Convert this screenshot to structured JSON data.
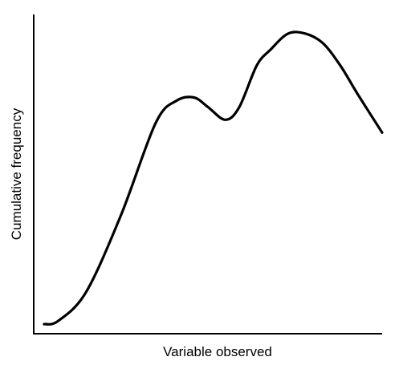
{
  "chart_data": {
    "type": "line",
    "title": "",
    "xlabel": "Variable observed",
    "ylabel": "Cumulative frequency",
    "xlim": [
      0,
      100
    ],
    "ylim": [
      0,
      100
    ],
    "ticks": false,
    "grid": false,
    "legend": "none",
    "series": [
      {
        "values_x": [
          3,
          7,
          15,
          25,
          35,
          41,
          46,
          50,
          55,
          59,
          64,
          68,
          73,
          78,
          83,
          88,
          93,
          100
        ],
        "values_y": [
          3,
          4,
          13,
          37,
          66,
          73,
          74,
          71,
          67,
          71,
          84,
          89,
          94,
          94,
          91,
          84,
          75,
          63
        ]
      }
    ]
  }
}
